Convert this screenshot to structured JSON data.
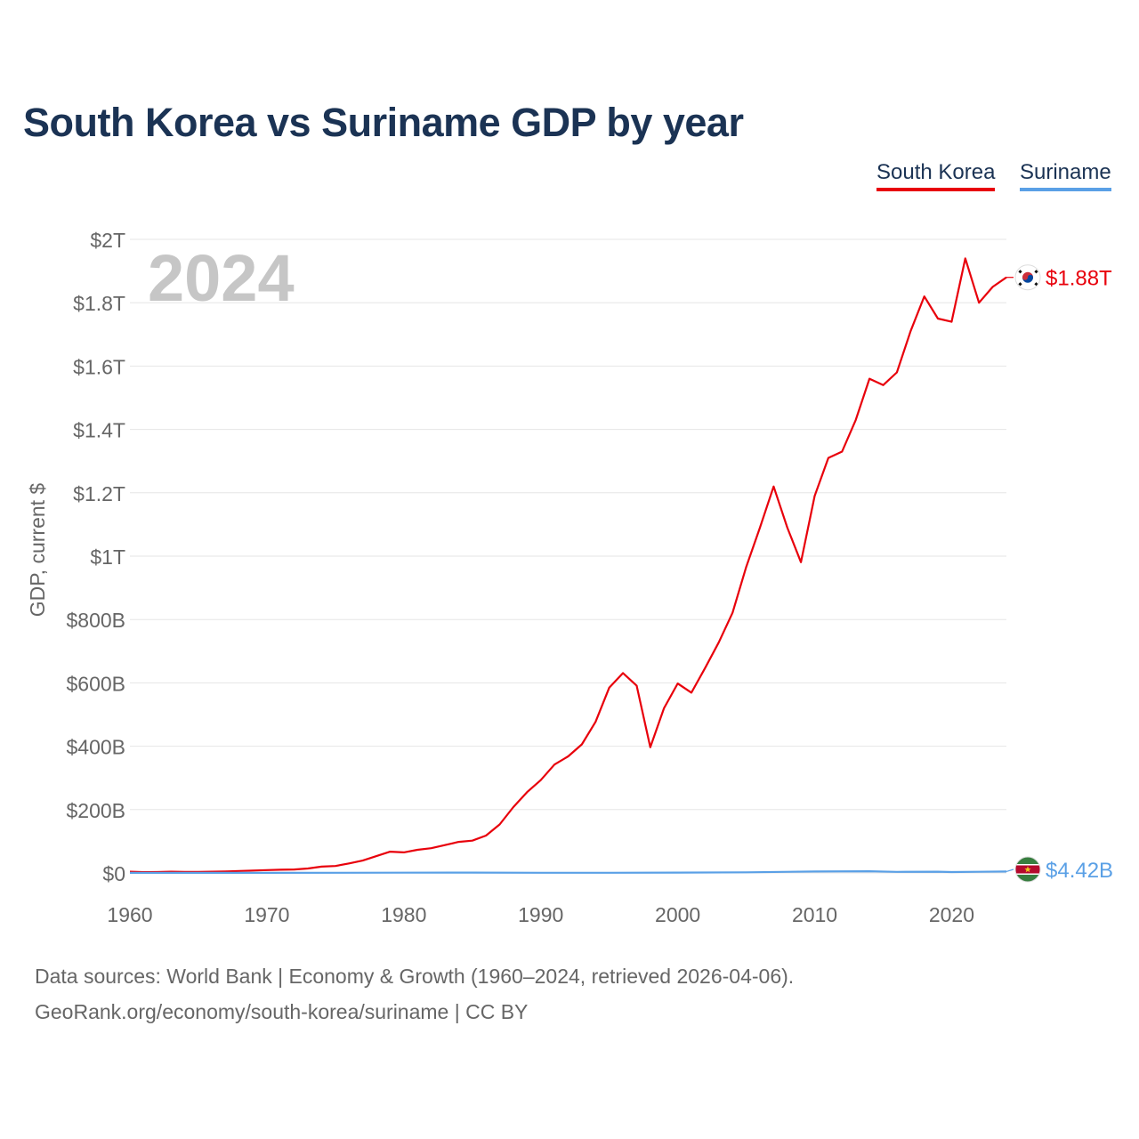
{
  "chart_data": {
    "type": "line",
    "title": "South Korea vs Suriname GDP by year",
    "ylabel": "GDP, current $",
    "xlabel": "",
    "year_label": "2024",
    "xlim": [
      1960,
      2024
    ],
    "ylim": [
      0,
      2000000000000
    ],
    "x_ticks": [
      1960,
      1970,
      1980,
      1990,
      2000,
      2010,
      2020
    ],
    "x_tick_labels": [
      "1960",
      "1970",
      "1980",
      "1990",
      "2000",
      "2010",
      "2020"
    ],
    "y_ticks": [
      0,
      200000000000,
      400000000000,
      600000000000,
      800000000000,
      1000000000000,
      1200000000000,
      1400000000000,
      1600000000000,
      1800000000000,
      2000000000000
    ],
    "y_tick_labels": [
      "$0",
      "$200B",
      "$400B",
      "$600B",
      "$800B",
      "$1T",
      "$1.2T",
      "$1.4T",
      "$1.6T",
      "$1.8T",
      "$2T"
    ],
    "grid": true,
    "legend_position": "top-right",
    "series": [
      {
        "name": "South Korea",
        "color": "#e8000b",
        "end_label": "$1.88T",
        "flag": "south-korea-flag",
        "x": [
          1960,
          1961,
          1962,
          1963,
          1964,
          1965,
          1966,
          1967,
          1968,
          1969,
          1970,
          1971,
          1972,
          1973,
          1974,
          1975,
          1976,
          1977,
          1978,
          1979,
          1980,
          1981,
          1982,
          1983,
          1984,
          1985,
          1986,
          1987,
          1988,
          1989,
          1990,
          1991,
          1992,
          1993,
          1994,
          1995,
          1996,
          1997,
          1998,
          1999,
          2000,
          2001,
          2002,
          2003,
          2004,
          2005,
          2006,
          2007,
          2008,
          2009,
          2010,
          2011,
          2012,
          2013,
          2014,
          2015,
          2016,
          2017,
          2018,
          2019,
          2020,
          2021,
          2022,
          2023,
          2024
        ],
        "y": [
          4000000000,
          2400000000,
          2800000000,
          3900000000,
          3500000000,
          3100000000,
          3900000000,
          4900000000,
          6100000000,
          7700000000,
          9000000000,
          10000000000,
          11000000000,
          14000000000,
          20000000000,
          22000000000,
          30000000000,
          39000000000,
          53000000000,
          67000000000,
          65000000000,
          73000000000,
          78000000000,
          88000000000,
          98000000000,
          102000000000,
          118000000000,
          153000000000,
          208000000000,
          255000000000,
          293000000000,
          342000000000,
          368000000000,
          406000000000,
          477000000000,
          585000000000,
          631000000000,
          591000000000,
          397000000000,
          520000000000,
          598000000000,
          569000000000,
          647000000000,
          728000000000,
          821000000000,
          966000000000,
          1090000000000,
          1220000000000,
          1090000000000,
          981000000000,
          1190000000000,
          1310000000000,
          1330000000000,
          1430000000000,
          1560000000000,
          1540000000000,
          1580000000000,
          1710000000000,
          1820000000000,
          1750000000000,
          1740000000000,
          1940000000000,
          1800000000000,
          1850000000000,
          1880000000000
        ]
      },
      {
        "name": "Suriname",
        "color": "#5aa0e6",
        "end_label": "$4.42B",
        "flag": "suriname-flag",
        "x": [
          1960,
          1965,
          1970,
          1975,
          1980,
          1985,
          1990,
          1995,
          2000,
          2005,
          2010,
          2014,
          2016,
          2019,
          2020,
          2022,
          2024
        ],
        "y": [
          300000000,
          300000000,
          400000000,
          700000000,
          900000000,
          1000000000,
          700000000,
          700000000,
          1100000000,
          2000000000,
          4400000000,
          5200000000,
          3300000000,
          4000000000,
          2900000000,
          3600000000,
          4420000000
        ]
      }
    ]
  },
  "footer": {
    "source_line1": "Data sources: World Bank | Economy & Growth (1960–2024, retrieved 2026-04-06).",
    "source_line2": "GeoRank.org/economy/south-korea/suriname | CC BY"
  }
}
